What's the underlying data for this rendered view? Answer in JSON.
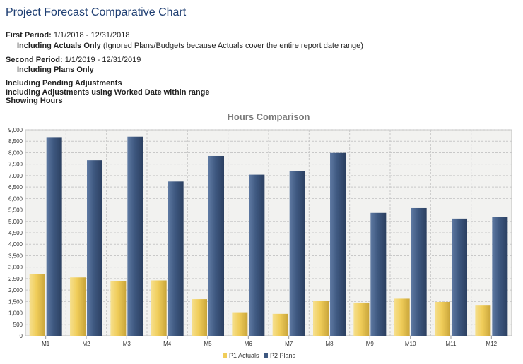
{
  "page": {
    "title": "Project Forecast Comparative Chart",
    "first_period_label": "First Period:",
    "first_period_range": "1/1/2018 - 12/31/2018",
    "first_period_mode": "Including Actuals Only",
    "first_period_note": "(Ignored Plans/Budgets because Actuals cover the entire report date range)",
    "second_period_label": "Second Period:",
    "second_period_range": "1/1/2019 - 12/31/2019",
    "second_period_mode": "Including Plans Only",
    "option_1": "Including Pending Adjustments",
    "option_2": "Including Adjustments using Worked Date within range",
    "option_3": "Showing Hours"
  },
  "colors": {
    "p1": "#f0cd5a",
    "p2": "#3e5880",
    "title": "#1f3f73",
    "chart_title": "#7a7a7a",
    "plot_bg": "#f2f2f0",
    "grid": "#c8c8c8"
  },
  "chart_data": {
    "type": "bar",
    "title": "Hours Comparison",
    "categories": [
      "M1",
      "M2",
      "M3",
      "M4",
      "M5",
      "M6",
      "M7",
      "M8",
      "M9",
      "M10",
      "M11",
      "M12"
    ],
    "series": [
      {
        "name": "P1 Actuals",
        "values": [
          2700,
          2550,
          2380,
          2420,
          1600,
          1030,
          960,
          1520,
          1450,
          1620,
          1480,
          1320
        ]
      },
      {
        "name": "P2 Plans",
        "values": [
          8680,
          7670,
          8700,
          6740,
          7860,
          7040,
          7200,
          7990,
          5370,
          5580,
          5120,
          5200
        ]
      }
    ],
    "ylim": [
      0,
      9000
    ],
    "yticks": [
      "0",
      "500",
      "1,000",
      "1,500",
      "2,000",
      "2,500",
      "3,000",
      "3,500",
      "4,000",
      "4,500",
      "5,000",
      "5,500",
      "6,000",
      "6,500",
      "7,000",
      "7,500",
      "8,000",
      "8,500",
      "9,000"
    ],
    "grid": true,
    "legend_position": "bottom-center"
  }
}
